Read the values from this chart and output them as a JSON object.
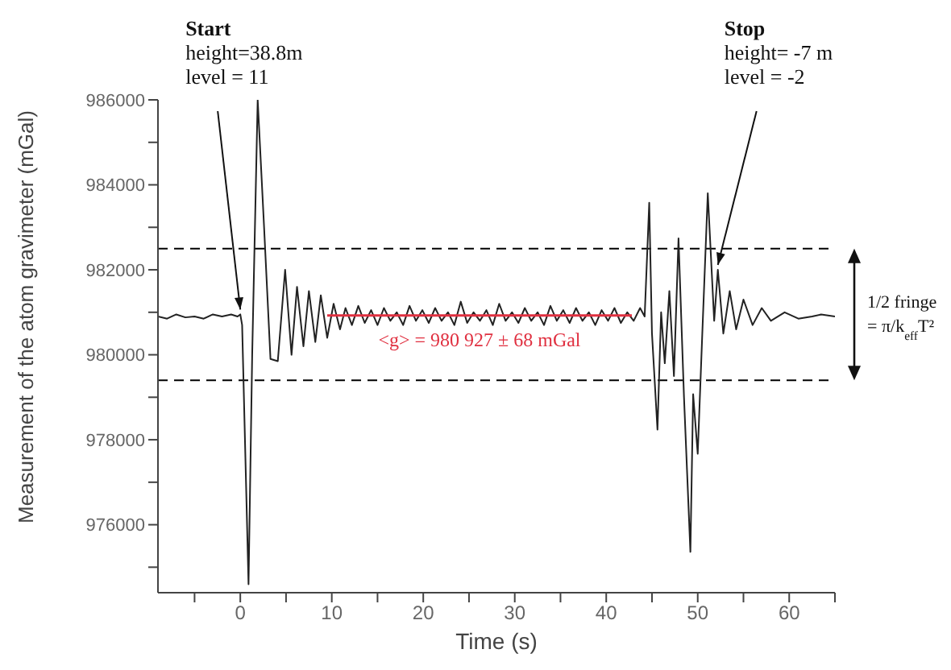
{
  "chart_data": {
    "type": "line",
    "xlabel": "Time (s)",
    "ylabel": "Measurement of the atom gravimeter (mGal)",
    "xlim": [
      -9,
      65
    ],
    "ylim": [
      974400,
      986000
    ],
    "xticks": [
      {
        "value": -5,
        "label": null
      },
      0,
      {
        "value": 5,
        "label": null
      },
      10,
      {
        "value": 15,
        "label": null
      },
      20,
      {
        "value": 25,
        "label": null
      },
      30,
      {
        "value": 35,
        "label": null
      },
      40,
      {
        "value": 45,
        "label": null
      },
      50,
      {
        "value": 55,
        "label": null
      },
      60,
      {
        "value": 65,
        "label": null
      }
    ],
    "yticks": [
      {
        "value": 975000,
        "label": null
      },
      976000,
      {
        "value": 977000,
        "label": null
      },
      978000,
      {
        "value": 979000,
        "label": null
      },
      980000,
      {
        "value": 981000,
        "label": null
      },
      982000,
      {
        "value": 983000,
        "label": null
      },
      984000,
      {
        "value": 985000,
        "label": null
      },
      986000
    ],
    "series": [
      {
        "color": "#222222",
        "x": [
          -9,
          -8,
          -7,
          -6,
          -5,
          -4,
          -3,
          -2,
          -1,
          -0.3,
          0,
          0.2,
          0.9,
          1.3,
          1.9,
          2.6,
          3.3,
          4.1,
          4.9,
          5.6,
          6.2,
          6.9,
          7.5,
          8.2,
          8.8,
          9.5,
          10.2,
          10.9,
          11.5,
          12.2,
          12.9,
          13.6,
          14.3,
          15,
          15.7,
          16.4,
          17.1,
          17.8,
          18.5,
          19.2,
          19.9,
          20.6,
          21.3,
          22,
          22.7,
          23.4,
          24.1,
          24.8,
          25.5,
          26.2,
          26.9,
          27.6,
          28.3,
          29,
          29.7,
          30.4,
          31.1,
          31.8,
          32.5,
          33.2,
          33.9,
          34.6,
          35.3,
          36,
          36.7,
          37.4,
          38.1,
          38.8,
          39.5,
          40.2,
          40.9,
          41.6,
          42.3,
          43,
          43.7,
          44.2,
          44.7,
          45,
          45.6,
          46,
          46.4,
          46.9,
          47.4,
          47.9,
          48.5,
          49.2,
          49.5,
          50,
          50.5,
          51.1,
          51.8,
          52.2,
          52.8,
          53.5,
          54.2,
          55,
          56,
          57,
          58,
          59.5,
          61,
          62.5,
          63.5,
          65
        ],
        "values": [
          980900,
          980850,
          980950,
          980880,
          980900,
          980850,
          980950,
          980900,
          980950,
          980900,
          980950,
          980700,
          974600,
          980000,
          986000,
          983000,
          979900,
          979850,
          982000,
          980000,
          981600,
          980200,
          981500,
          980300,
          981400,
          980400,
          981200,
          980600,
          981100,
          980700,
          981150,
          980750,
          981050,
          980700,
          981100,
          980800,
          981000,
          980700,
          981150,
          980800,
          981050,
          980750,
          981100,
          980800,
          981000,
          980700,
          981250,
          980750,
          981000,
          980800,
          981050,
          980700,
          981200,
          980800,
          981000,
          980750,
          981100,
          980800,
          981000,
          980700,
          981150,
          980800,
          981050,
          980750,
          981100,
          980800,
          981000,
          980700,
          981050,
          980800,
          981100,
          980750,
          981000,
          980800,
          981100,
          980900,
          983580,
          980500,
          978240,
          981000,
          979800,
          981500,
          979500,
          982740,
          979000,
          975360,
          979070,
          977670,
          980500,
          983800,
          980800,
          982000,
          980500,
          981500,
          980600,
          981300,
          980700,
          981100,
          980800,
          981000,
          980850,
          980900,
          980950,
          980900
        ]
      },
      {
        "name": "<g> = 980 927 ± 68 mGal",
        "color": "#e03040",
        "x": [
          9.5,
          42.8
        ],
        "values": [
          980927,
          980927
        ]
      }
    ],
    "ref_lines": [
      {
        "axis": "y",
        "value": 982500,
        "color": "#000000",
        "line_style": "dashed"
      },
      {
        "axis": "y",
        "value": 979400,
        "color": "#000000",
        "line_style": "dashed"
      }
    ],
    "annotations": [
      {
        "text": "Start\nheight=38.8m\nlevel = 11",
        "x": 0,
        "y": 980950
      },
      {
        "text": "Stop\nheight= -7 m\nlevel = -2",
        "x": 52.2,
        "y": 982000
      },
      "1/2 fringe\n= π/k$_{eff}$T²"
    ]
  }
}
